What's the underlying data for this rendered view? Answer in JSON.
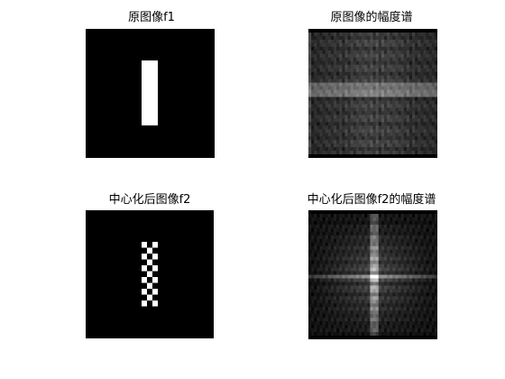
{
  "figure": {
    "panels": [
      {
        "title": "原图像f1"
      },
      {
        "title": "原图像的幅度谱"
      },
      {
        "title": "中心化后图像f2"
      },
      {
        "title": "中心化后图像f2的幅度谱"
      }
    ]
  }
}
